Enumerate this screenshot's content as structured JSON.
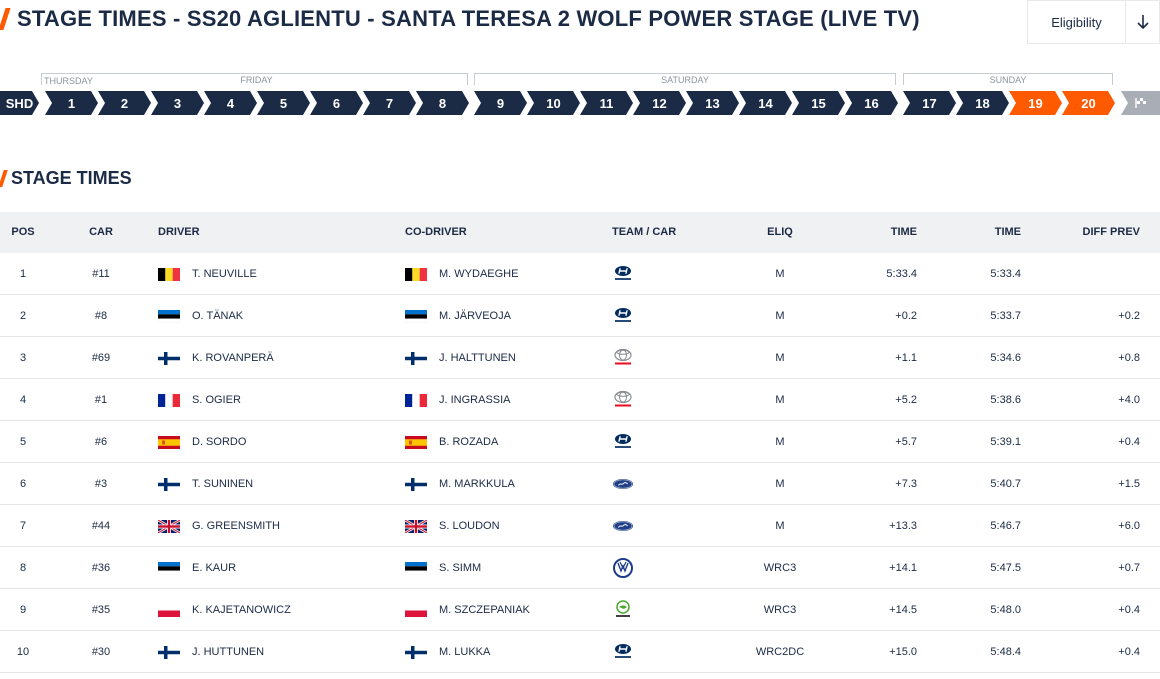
{
  "header": {
    "title": "STAGE TIMES - SS20 AGLIENTU - SANTA TERESA 2 WOLF POWER STAGE (LIVE TV)",
    "eligibility_label": "Eligibility",
    "eligibility_icon": "arrow-down-icon"
  },
  "days": [
    "THURSDAY",
    "FRIDAY",
    "SATURDAY",
    "SUNDAY"
  ],
  "stages": [
    "SHD",
    "1",
    "2",
    "3",
    "4",
    "5",
    "6",
    "7",
    "8",
    "9",
    "10",
    "11",
    "12",
    "13",
    "14",
    "15",
    "16",
    "17",
    "18",
    "19",
    "20"
  ],
  "selected_stage": "20",
  "finish_icon": "finish-flag-icon",
  "section": {
    "title": "STAGE TIMES"
  },
  "columns": {
    "pos": "POS",
    "car": "CAR",
    "driver": "DRIVER",
    "codriver": "CO-DRIVER",
    "team": "TEAM / CAR",
    "eliq": "ELIQ",
    "time1": "TIME",
    "time2": "TIME",
    "diff": "DIFF PREV"
  },
  "rows": [
    {
      "pos": "1",
      "car": "#11",
      "flag": "BEL",
      "driver": "T. NEUVILLE",
      "codriver": "M. WYDAEGHE",
      "team": "HYUNDAI",
      "eliq": "M",
      "time1": "5:33.4",
      "time2": "5:33.4",
      "diff": ""
    },
    {
      "pos": "2",
      "car": "#8",
      "flag": "EST",
      "driver": "O. TÄNAK",
      "codriver": "M. JÄRVEOJA",
      "team": "HYUNDAI",
      "eliq": "M",
      "time1": "+0.2",
      "time2": "5:33.7",
      "diff": "+0.2"
    },
    {
      "pos": "3",
      "car": "#69",
      "flag": "FIN",
      "driver": "K. ROVANPERÄ",
      "codriver": "J. HALTTUNEN",
      "team": "TOYOTA",
      "eliq": "M",
      "time1": "+1.1",
      "time2": "5:34.6",
      "diff": "+0.8"
    },
    {
      "pos": "4",
      "car": "#1",
      "flag": "FRA",
      "driver": "S. OGIER",
      "codriver": "J. INGRASSIA",
      "team": "TOYOTA",
      "eliq": "M",
      "time1": "+5.2",
      "time2": "5:38.6",
      "diff": "+4.0"
    },
    {
      "pos": "5",
      "car": "#6",
      "flag": "ESP",
      "driver": "D. SORDO",
      "codriver": "B. ROZADA",
      "team": "HYUNDAI",
      "eliq": "M",
      "time1": "+5.7",
      "time2": "5:39.1",
      "diff": "+0.4"
    },
    {
      "pos": "6",
      "car": "#3",
      "flag": "FIN",
      "driver": "T. SUNINEN",
      "codriver": "M. MARKKULA",
      "team": "FORD",
      "eliq": "M",
      "time1": "+7.3",
      "time2": "5:40.7",
      "diff": "+1.5"
    },
    {
      "pos": "7",
      "car": "#44",
      "flag": "GBR",
      "driver": "G. GREENSMITH",
      "codriver": "S. LOUDON",
      "team": "FORD",
      "eliq": "M",
      "time1": "+13.3",
      "time2": "5:46.7",
      "diff": "+6.0"
    },
    {
      "pos": "8",
      "car": "#36",
      "flag": "EST",
      "driver": "E. KAUR",
      "codriver": "S. SIMM",
      "team": "VW",
      "eliq": "WRC3",
      "time1": "+14.1",
      "time2": "5:47.5",
      "diff": "+0.7"
    },
    {
      "pos": "9",
      "car": "#35",
      "flag": "POL",
      "driver": "K. KAJETANOWICZ",
      "codriver": "M. SZCZEPANIAK",
      "team": "SKODA",
      "eliq": "WRC3",
      "time1": "+14.5",
      "time2": "5:48.0",
      "diff": "+0.4"
    },
    {
      "pos": "10",
      "car": "#30",
      "flag": "FIN",
      "driver": "J. HUTTUNEN",
      "codriver": "M. LUKKA",
      "team": "HYUNDAI",
      "eliq": "WRC2DC",
      "time1": "+15.0",
      "time2": "5:48.4",
      "diff": "+0.4"
    }
  ],
  "colors": {
    "navy": "#1b2a45",
    "orange": "#ff5a00",
    "grey": "#a9adb5"
  }
}
